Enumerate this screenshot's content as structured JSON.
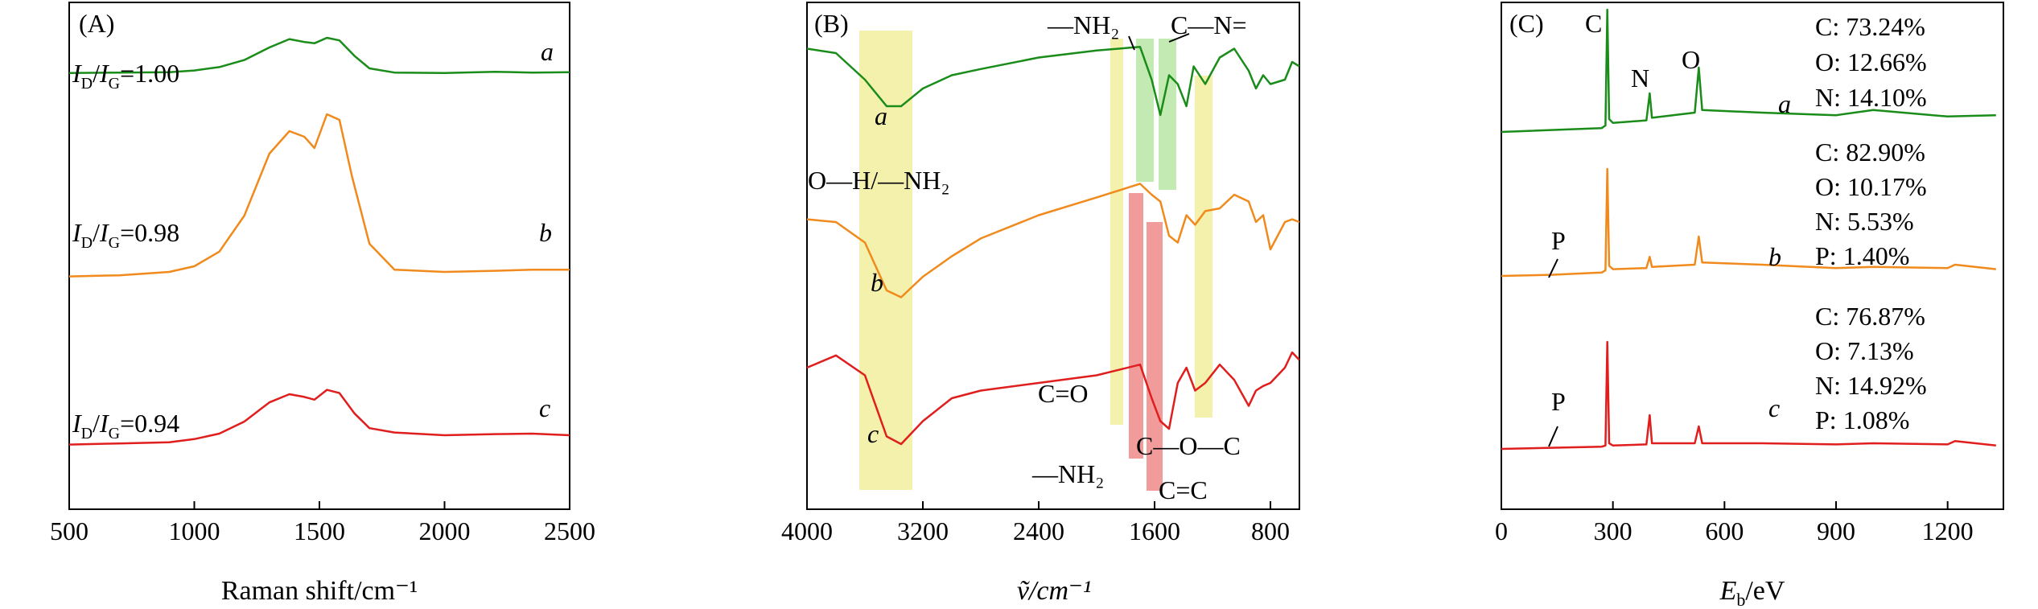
{
  "colors": {
    "a": "#1a8c1a",
    "b": "#f08a1c",
    "c": "#e01e1e",
    "yellow": "#f1ee9e",
    "green": "#b9e6a4",
    "red": "#f08a8a",
    "frame": "#000000"
  },
  "chart_data": [
    {
      "id": "A",
      "type": "line",
      "panel_label": "(A)",
      "xlabel": "Raman shift/cm⁻¹",
      "ylabel": "",
      "xlim": [
        500,
        2500
      ],
      "xticks": [
        500,
        1000,
        1500,
        2000,
        2500
      ],
      "series": [
        {
          "name": "a",
          "color": "#1a8c1a",
          "ratio": "I_D/I_G=1.00",
          "ratio_prefix": "I",
          "ratio_sub1": "D",
          "ratio_slash": "/",
          "ratio_sub2": "G",
          "ratio_value": "=1.00",
          "points": [
            [
              500,
              0.14
            ],
            [
              700,
              0.15
            ],
            [
              900,
              0.16
            ],
            [
              1000,
              0.2
            ],
            [
              1100,
              0.28
            ],
            [
              1200,
              0.45
            ],
            [
              1300,
              0.75
            ],
            [
              1380,
              0.95
            ],
            [
              1440,
              0.88
            ],
            [
              1480,
              0.85
            ],
            [
              1530,
              0.98
            ],
            [
              1580,
              0.92
            ],
            [
              1640,
              0.55
            ],
            [
              1700,
              0.25
            ],
            [
              1800,
              0.15
            ],
            [
              2000,
              0.14
            ],
            [
              2200,
              0.17
            ],
            [
              2350,
              0.15
            ],
            [
              2500,
              0.16
            ]
          ]
        },
        {
          "name": "b",
          "color": "#f08a1c",
          "ratio": "I_D/I_G=0.98",
          "ratio_prefix": "I",
          "ratio_sub1": "D",
          "ratio_slash": "/",
          "ratio_sub2": "G",
          "ratio_value": "=0.98",
          "points": [
            [
              500,
              0.06
            ],
            [
              700,
              0.07
            ],
            [
              900,
              0.1
            ],
            [
              1000,
              0.15
            ],
            [
              1100,
              0.28
            ],
            [
              1200,
              0.6
            ],
            [
              1300,
              1.15
            ],
            [
              1380,
              1.35
            ],
            [
              1440,
              1.3
            ],
            [
              1480,
              1.2
            ],
            [
              1530,
              1.5
            ],
            [
              1580,
              1.45
            ],
            [
              1630,
              0.95
            ],
            [
              1700,
              0.35
            ],
            [
              1800,
              0.12
            ],
            [
              2000,
              0.1
            ],
            [
              2200,
              0.11
            ],
            [
              2350,
              0.12
            ],
            [
              2500,
              0.12
            ]
          ]
        },
        {
          "name": "c",
          "color": "#e01e1e",
          "ratio": "I_D/I_G=0.94",
          "ratio_prefix": "I",
          "ratio_sub1": "D",
          "ratio_slash": "/",
          "ratio_sub2": "G",
          "ratio_value": "=0.94",
          "points": [
            [
              500,
              0.08
            ],
            [
              700,
              0.1
            ],
            [
              900,
              0.12
            ],
            [
              1000,
              0.18
            ],
            [
              1100,
              0.28
            ],
            [
              1200,
              0.5
            ],
            [
              1300,
              0.85
            ],
            [
              1380,
              1.0
            ],
            [
              1440,
              0.95
            ],
            [
              1480,
              0.9
            ],
            [
              1530,
              1.08
            ],
            [
              1580,
              1.02
            ],
            [
              1640,
              0.65
            ],
            [
              1700,
              0.38
            ],
            [
              1800,
              0.3
            ],
            [
              2000,
              0.25
            ],
            [
              2200,
              0.27
            ],
            [
              2350,
              0.28
            ],
            [
              2500,
              0.25
            ]
          ]
        }
      ]
    },
    {
      "id": "B",
      "type": "line",
      "panel_label": "(B)",
      "xlabel": "ṽ/cm⁻¹",
      "ylabel": "",
      "xlim": [
        4000,
        600
      ],
      "xticks": [
        4000,
        3200,
        2400,
        1600,
        800
      ],
      "series": [
        {
          "name": "a",
          "color": "#1a8c1a",
          "points": [
            [
              4000,
              0.95
            ],
            [
              3800,
              0.9
            ],
            [
              3600,
              0.6
            ],
            [
              3450,
              0.3
            ],
            [
              3350,
              0.3
            ],
            [
              3200,
              0.5
            ],
            [
              3000,
              0.65
            ],
            [
              2800,
              0.72
            ],
            [
              2400,
              0.85
            ],
            [
              2000,
              0.93
            ],
            [
              1700,
              0.97
            ],
            [
              1620,
              0.6
            ],
            [
              1560,
              0.2
            ],
            [
              1500,
              0.65
            ],
            [
              1440,
              0.55
            ],
            [
              1380,
              0.3
            ],
            [
              1330,
              0.75
            ],
            [
              1250,
              0.55
            ],
            [
              1150,
              0.85
            ],
            [
              1050,
              0.95
            ],
            [
              950,
              0.7
            ],
            [
              900,
              0.5
            ],
            [
              850,
              0.65
            ],
            [
              800,
              0.55
            ],
            [
              700,
              0.6
            ],
            [
              650,
              0.8
            ],
            [
              600,
              0.75
            ]
          ]
        },
        {
          "name": "b",
          "color": "#f08a1c",
          "points": [
            [
              4000,
              0.72
            ],
            [
              3800,
              0.7
            ],
            [
              3600,
              0.55
            ],
            [
              3450,
              0.2
            ],
            [
              3350,
              0.15
            ],
            [
              3200,
              0.3
            ],
            [
              3000,
              0.45
            ],
            [
              2800,
              0.58
            ],
            [
              2400,
              0.75
            ],
            [
              2000,
              0.88
            ],
            [
              1700,
              0.98
            ],
            [
              1620,
              0.9
            ],
            [
              1560,
              0.85
            ],
            [
              1500,
              0.6
            ],
            [
              1440,
              0.55
            ],
            [
              1380,
              0.75
            ],
            [
              1320,
              0.68
            ],
            [
              1250,
              0.78
            ],
            [
              1150,
              0.8
            ],
            [
              1050,
              0.9
            ],
            [
              950,
              0.85
            ],
            [
              900,
              0.7
            ],
            [
              850,
              0.75
            ],
            [
              800,
              0.5
            ],
            [
              700,
              0.7
            ],
            [
              650,
              0.72
            ],
            [
              600,
              0.7
            ]
          ]
        },
        {
          "name": "c",
          "color": "#e01e1e",
          "points": [
            [
              4000,
              0.7
            ],
            [
              3800,
              0.78
            ],
            [
              3600,
              0.65
            ],
            [
              3450,
              0.25
            ],
            [
              3350,
              0.2
            ],
            [
              3200,
              0.35
            ],
            [
              3000,
              0.5
            ],
            [
              2800,
              0.55
            ],
            [
              2400,
              0.6
            ],
            [
              2000,
              0.65
            ],
            [
              1700,
              0.72
            ],
            [
              1620,
              0.5
            ],
            [
              1560,
              0.35
            ],
            [
              1500,
              0.3
            ],
            [
              1440,
              0.6
            ],
            [
              1380,
              0.7
            ],
            [
              1320,
              0.55
            ],
            [
              1250,
              0.6
            ],
            [
              1150,
              0.72
            ],
            [
              1050,
              0.62
            ],
            [
              950,
              0.45
            ],
            [
              900,
              0.55
            ],
            [
              850,
              0.58
            ],
            [
              800,
              0.6
            ],
            [
              700,
              0.7
            ],
            [
              650,
              0.8
            ],
            [
              600,
              0.75
            ]
          ]
        }
      ],
      "annotations": {
        "oh_nh2": "O—H/—NH₂",
        "nh2_top": "—NH₂",
        "c_n": "C—N=",
        "c_o_double": "C=O",
        "nh2_bottom": "—NH₂",
        "c_o_c": "C—O—C",
        "c_c_double": "C=C"
      }
    },
    {
      "id": "C",
      "type": "line",
      "panel_label": "(C)",
      "xlabel": "E_b/eV",
      "xlabel_main": "E",
      "xlabel_sub": "b",
      "xlabel_unit": "/eV",
      "ylabel": "",
      "xlim": [
        0,
        1350
      ],
      "xticks": [
        0,
        300,
        600,
        900,
        1200
      ],
      "peak_labels": {
        "C": "C",
        "N": "N",
        "O": "O",
        "P": "P"
      },
      "series": [
        {
          "name": "a",
          "color": "#1a8c1a",
          "composition": [
            "C: 73.24%",
            "O: 12.66%",
            "N: 14.10%"
          ],
          "points": [
            [
              0,
              0.05
            ],
            [
              270,
              0.08
            ],
            [
              280,
              0.1
            ],
            [
              285,
              1.0
            ],
            [
              290,
              0.15
            ],
            [
              300,
              0.12
            ],
            [
              390,
              0.14
            ],
            [
              399,
              0.35
            ],
            [
              405,
              0.16
            ],
            [
              520,
              0.2
            ],
            [
              531,
              0.55
            ],
            [
              540,
              0.22
            ],
            [
              700,
              0.2
            ],
            [
              900,
              0.18
            ],
            [
              1000,
              0.22
            ],
            [
              1200,
              0.17
            ],
            [
              1330,
              0.18
            ]
          ]
        },
        {
          "name": "b",
          "color": "#f08a1c",
          "composition": [
            "C: 82.90%",
            "O: 10.17%",
            "N: 5.53%",
            "P: 1.40%"
          ],
          "points": [
            [
              0,
              0.05
            ],
            [
              133,
              0.06
            ],
            [
              270,
              0.08
            ],
            [
              280,
              0.1
            ],
            [
              285,
              1.0
            ],
            [
              290,
              0.14
            ],
            [
              300,
              0.11
            ],
            [
              390,
              0.12
            ],
            [
              399,
              0.22
            ],
            [
              405,
              0.13
            ],
            [
              520,
              0.15
            ],
            [
              531,
              0.4
            ],
            [
              540,
              0.17
            ],
            [
              700,
              0.15
            ],
            [
              900,
              0.12
            ],
            [
              1000,
              0.13
            ],
            [
              1200,
              0.12
            ],
            [
              1220,
              0.15
            ],
            [
              1330,
              0.11
            ]
          ]
        },
        {
          "name": "c",
          "color": "#e01e1e",
          "composition": [
            "C: 76.87%",
            "O: 7.13%",
            "N: 14.92%",
            "P: 1.08%"
          ],
          "points": [
            [
              0,
              0.05
            ],
            [
              133,
              0.06
            ],
            [
              270,
              0.07
            ],
            [
              280,
              0.08
            ],
            [
              285,
              1.0
            ],
            [
              290,
              0.1
            ],
            [
              300,
              0.08
            ],
            [
              390,
              0.09
            ],
            [
              399,
              0.35
            ],
            [
              405,
              0.1
            ],
            [
              520,
              0.1
            ],
            [
              531,
              0.25
            ],
            [
              540,
              0.1
            ],
            [
              700,
              0.1
            ],
            [
              900,
              0.09
            ],
            [
              1000,
              0.1
            ],
            [
              1200,
              0.09
            ],
            [
              1220,
              0.12
            ],
            [
              1330,
              0.08
            ]
          ]
        }
      ]
    }
  ]
}
